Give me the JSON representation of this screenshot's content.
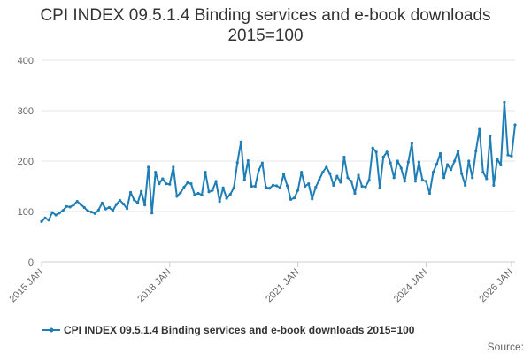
{
  "title_line1": "CPI INDEX 09.5.1.4 Binding services and e-book downloads",
  "title_line2": "2015=100",
  "source_label": "Source:",
  "colors": {
    "series": "#1f7eb5",
    "grid": "#e6e6e6",
    "axis": "#cccccc",
    "text": "#333333"
  },
  "chart_data": {
    "type": "line",
    "title": "CPI INDEX 09.5.1.4 Binding services and e-book downloads 2015=100",
    "xlabel": "",
    "ylabel": "",
    "ylim": [
      0,
      400
    ],
    "yticks": [
      0,
      100,
      200,
      300,
      400
    ],
    "xlim": [
      "2015 JAN",
      "2026 FEB"
    ],
    "xticks": [
      "2015 JAN",
      "2018 JAN",
      "2021 JAN",
      "2024 JAN",
      "2026 JAN"
    ],
    "grid": true,
    "legend_position": "bottom",
    "series": [
      {
        "name": "CPI INDEX 09.5.1.4 Binding services and e-book downloads 2015=100",
        "start": "2015 JAN",
        "frequency": "monthly",
        "values": [
          80,
          87,
          83,
          98,
          93,
          97,
          102,
          110,
          109,
          113,
          120,
          114,
          108,
          101,
          99,
          96,
          103,
          117,
          105,
          108,
          102,
          114,
          122,
          115,
          106,
          138,
          123,
          117,
          140,
          113,
          188,
          97,
          178,
          155,
          165,
          155,
          154,
          188,
          130,
          137,
          148,
          157,
          155,
          133,
          136,
          133,
          178,
          139,
          142,
          160,
          120,
          147,
          126,
          134,
          147,
          197,
          238,
          163,
          201,
          150,
          150,
          182,
          196,
          148,
          146,
          152,
          151,
          147,
          174,
          151,
          124,
          127,
          142,
          178,
          150,
          155,
          125,
          148,
          163,
          178,
          188,
          175,
          152,
          170,
          158,
          208,
          167,
          160,
          136,
          172,
          150,
          149,
          162,
          226,
          218,
          147,
          208,
          218,
          196,
          167,
          200,
          186,
          160,
          198,
          235,
          160,
          198,
          162,
          160,
          136,
          178,
          194,
          215,
          167,
          193,
          183,
          200,
          220,
          175,
          152,
          200,
          167,
          220,
          263,
          178,
          165,
          250,
          152,
          204,
          192,
          317,
          212,
          210,
          272
        ]
      }
    ]
  }
}
